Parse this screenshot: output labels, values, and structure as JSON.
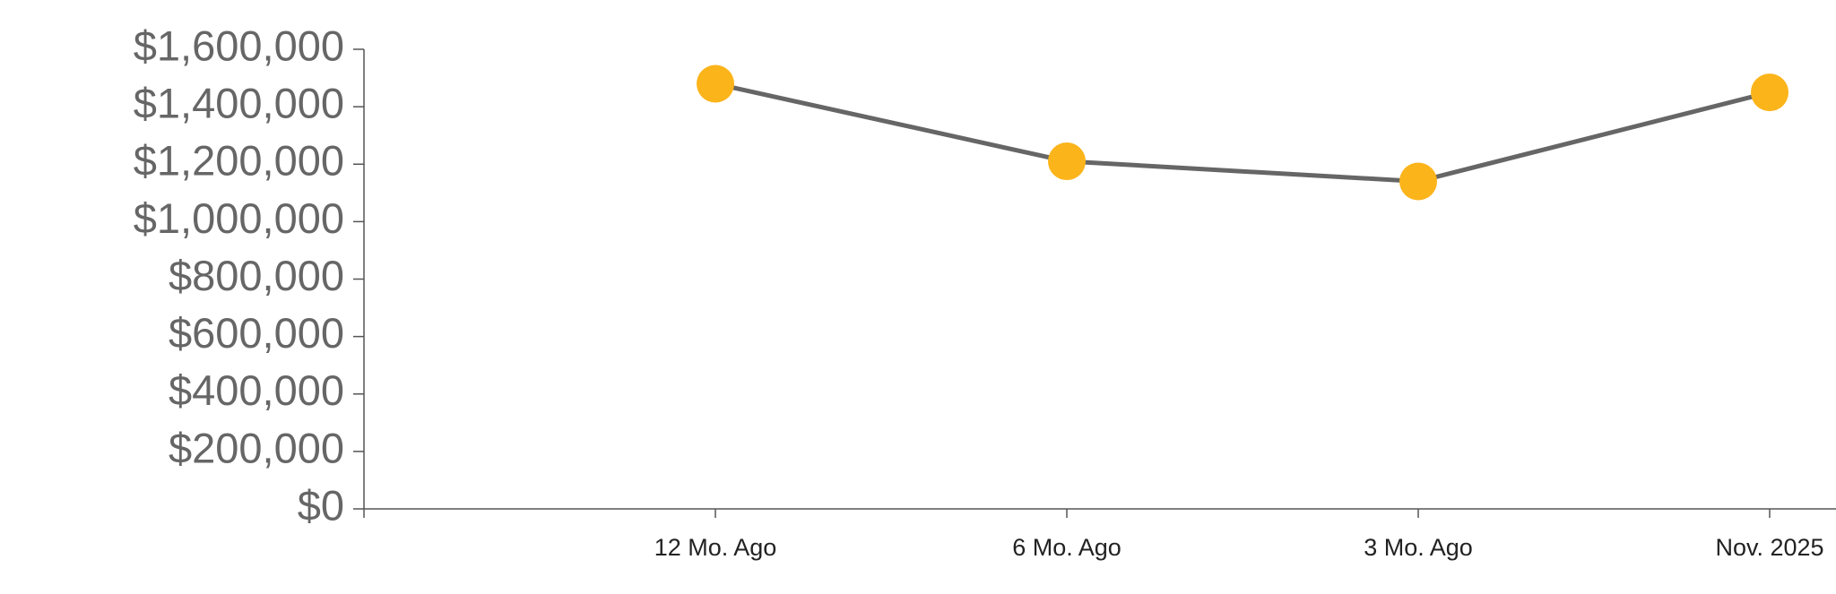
{
  "chart_data": {
    "type": "line",
    "categories": [
      "12 Mo. Ago",
      "6 Mo. Ago",
      "3 Mo. Ago",
      "Nov. 2025"
    ],
    "series": [
      {
        "color": "#666666",
        "marker_color": "#fbb41a",
        "values": [
          1480000,
          1210000,
          1140000,
          1450000
        ]
      }
    ],
    "ylim": [
      0,
      1600000
    ],
    "yticks": [
      {
        "value": 0,
        "label": "$0"
      },
      {
        "value": 200000,
        "label": "$200,000"
      },
      {
        "value": 400000,
        "label": "$400,000"
      },
      {
        "value": 600000,
        "label": "$600,000"
      },
      {
        "value": 800000,
        "label": "$800,000"
      },
      {
        "value": 1000000,
        "label": "$1,000,000"
      },
      {
        "value": 1200000,
        "label": "$1,200,000"
      },
      {
        "value": 1400000,
        "label": "$1,400,000"
      },
      {
        "value": 1600000,
        "label": "$1,600,000"
      }
    ]
  }
}
